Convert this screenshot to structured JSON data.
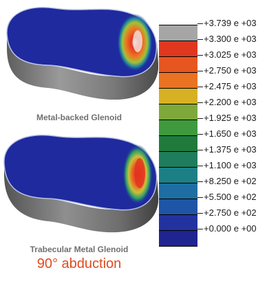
{
  "implants": [
    {
      "caption": "Metal-backed Glenoid"
    },
    {
      "caption": "Trabecular Metal Glenoid"
    }
  ],
  "subtitle": "90° abduction",
  "legend": {
    "levels": [
      {
        "label": "+3.739 e +03",
        "color": "#a6a6a6"
      },
      {
        "label": "+3.300 e +03",
        "color": "#e0381f"
      },
      {
        "label": "+3.025 e +03",
        "color": "#e8561f"
      },
      {
        "label": "+2.750 e +03",
        "color": "#ea7222"
      },
      {
        "label": "+2.475 e +03",
        "color": "#d7b123"
      },
      {
        "label": "+2.200 e +03",
        "color": "#7fa83a"
      },
      {
        "label": "+1.925 e +03",
        "color": "#3e9a3c"
      },
      {
        "label": "+1.650 e +03",
        "color": "#1f7a3c"
      },
      {
        "label": "+1.375 e +03",
        "color": "#1d7d5c"
      },
      {
        "label": "+1.100 e +03",
        "color": "#1d7f86"
      },
      {
        "label": "+8.250 e +02",
        "color": "#1e6ea3"
      },
      {
        "label": "+5.500 e +02",
        "color": "#1f55a6"
      },
      {
        "label": "+2.750 e +02",
        "color": "#2233a0"
      },
      {
        "label": "+0.000 e +00",
        "color": "#1f2490"
      }
    ]
  }
}
